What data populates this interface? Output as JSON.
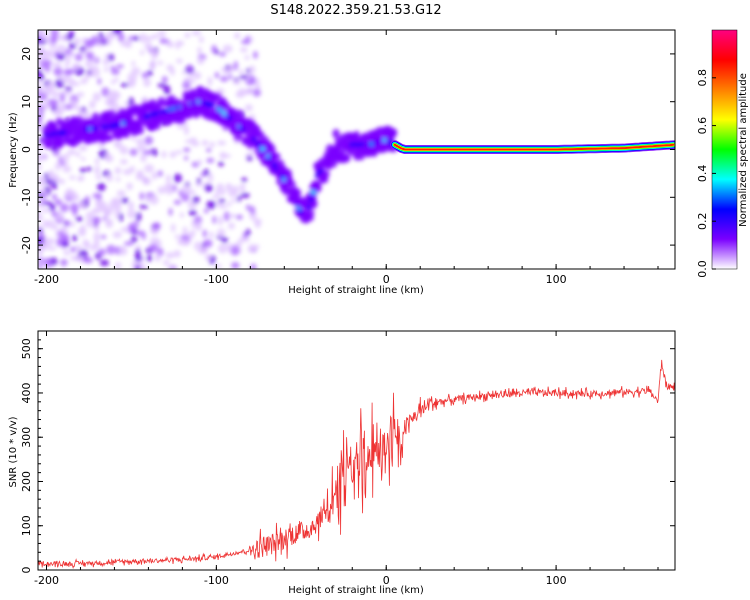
{
  "title": "S148.2022.359.21.53.G12",
  "chart_data": [
    {
      "type": "heatmap",
      "xlabel": "Height of straight line (km)",
      "ylabel": "Frequency (Hz)",
      "xlim": [
        -205,
        170
      ],
      "ylim": [
        -25,
        25
      ],
      "xticks": [
        -200,
        -100,
        0,
        100
      ],
      "yticks": [
        -20,
        -10,
        0,
        10,
        20
      ],
      "colorbar": {
        "label": "Normalized spectral amplitude",
        "range": [
          0,
          1
        ],
        "ticks": [
          "0.0",
          "0.2",
          "0.4",
          "0.6",
          "0.8"
        ],
        "colors": [
          "#ffffff",
          "#7a00ff",
          "#0000ff",
          "#00ffff",
          "#00ff00",
          "#ffff00",
          "#ff7f00",
          "#ff0000",
          "#ff0080"
        ]
      },
      "ridge": {
        "x": [
          -200,
          -180,
          -160,
          -140,
          -120,
          -110,
          -100,
          -90,
          -80,
          -70,
          -60,
          -50,
          -45,
          -40,
          -35,
          -30,
          -25,
          -20,
          -10,
          0,
          5,
          10,
          50,
          100,
          140,
          170
        ],
        "y": [
          3,
          4,
          5,
          7,
          9,
          10,
          9,
          6,
          3,
          -1,
          -6,
          -13,
          -12,
          -5,
          -4,
          1,
          0,
          1,
          1,
          2,
          1,
          0,
          0,
          0,
          0.3,
          1
        ]
      }
    },
    {
      "type": "line",
      "xlabel": "Height of straight line (km)",
      "ylabel": "SNR (10 * v/v)",
      "xlim": [
        -205,
        170
      ],
      "ylim": [
        0,
        540
      ],
      "xticks": [
        -200,
        -100,
        0,
        100
      ],
      "yticks": [
        0,
        100,
        200,
        300,
        400,
        500
      ],
      "color": "#ee3333",
      "series": [
        {
          "x": [
            -205,
            -190,
            -170,
            -150,
            -130,
            -110,
            -100,
            -90,
            -80,
            -75,
            -70,
            -65,
            -60,
            -55,
            -50,
            -45,
            -40,
            -35,
            -30,
            -25,
            -20,
            -15,
            -10,
            -5,
            0,
            5,
            10,
            15,
            20,
            25,
            30,
            40,
            50,
            60,
            80,
            100,
            120,
            140,
            155,
            160,
            162,
            165,
            170
          ],
          "y": [
            15,
            14,
            16,
            20,
            22,
            26,
            30,
            38,
            45,
            50,
            55,
            62,
            70,
            80,
            85,
            95,
            110,
            140,
            190,
            230,
            250,
            265,
            275,
            290,
            300,
            310,
            320,
            340,
            360,
            375,
            380,
            385,
            390,
            395,
            400,
            400,
            398,
            402,
            405,
            380,
            470,
            415,
            412
          ]
        }
      ]
    }
  ]
}
